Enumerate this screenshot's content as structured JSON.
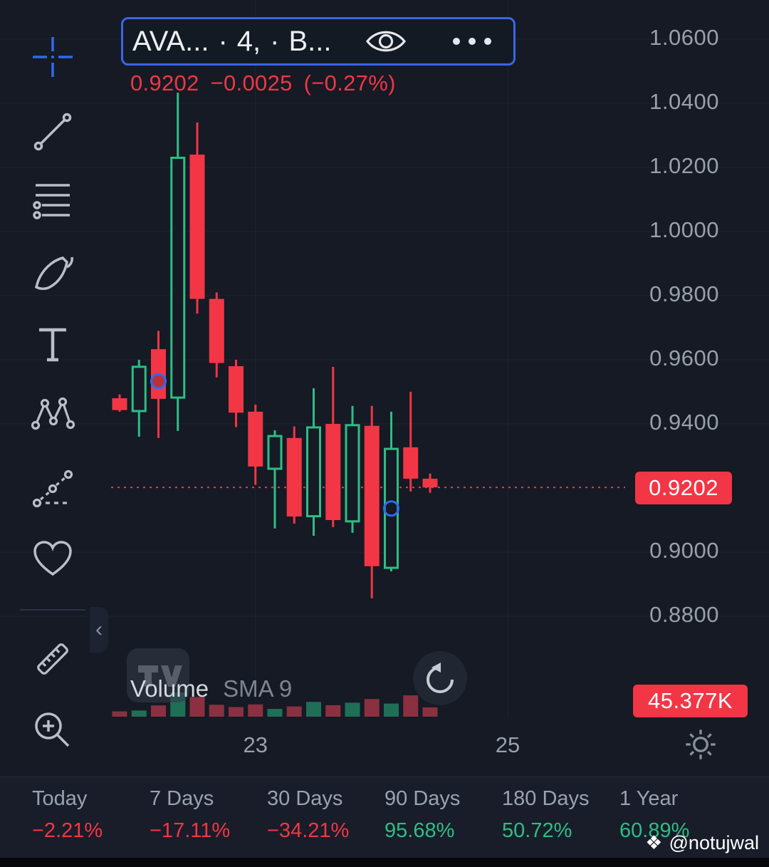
{
  "colors": {
    "bg": "#151a24",
    "panel": "#181d29",
    "up": "#2ebd85",
    "down": "#f23645",
    "volume_up": "#1f6f57",
    "volume_down": "#8a3040",
    "accent_blue": "#2f6bf0",
    "axis_text": "#9aa0ab",
    "text": "#eceff4",
    "muted": "#7e8490"
  },
  "header": {
    "symbol": "AVA...",
    "sep": "·",
    "interval": "4,",
    "exchange": "B...",
    "price": "0.9202",
    "change": "−0.0025",
    "change_pct": "(−0.27%)"
  },
  "toolbar": {
    "collapse_glyph": "‹",
    "active_tool": "crosshair",
    "tools": [
      "crosshair",
      "trend-line",
      "fib-retracement",
      "brush",
      "text",
      "xabcd-pattern",
      "forecast",
      "emoji",
      "measure",
      "zoom-in"
    ]
  },
  "legend": {
    "volume": "Volume",
    "sma": "SMA 9"
  },
  "price_axis": {
    "current_price_label": "0.9202",
    "volume_label": "45.377K"
  },
  "chart_data": {
    "type": "candlestick",
    "symbol_display": "AVA... · 4, · B...",
    "current_price": 0.9202,
    "change": -0.0025,
    "change_pct": -0.27,
    "ylim": [
      0.875,
      1.07
    ],
    "grid": true,
    "price_axis_ticks": [
      "1.0600",
      "1.0400",
      "1.0200",
      "1.0000",
      "0.9800",
      "0.9600",
      "0.9400",
      "0.9000",
      "0.8800"
    ],
    "time_ticks": [
      {
        "label": "23",
        "candle_index": 7
      },
      {
        "label": "25",
        "candle_index": 20
      }
    ],
    "indicator": "Volume SMA 9",
    "volume_unit": "K",
    "last_volume": "45.377K",
    "candles": [
      {
        "o": 0.948,
        "h": 0.9492,
        "l": 0.9438,
        "c": 0.9443,
        "v": 26
      },
      {
        "o": 0.944,
        "h": 0.96,
        "l": 0.936,
        "c": 0.9578,
        "v": 30
      },
      {
        "o": 0.9633,
        "h": 0.969,
        "l": 0.9356,
        "c": 0.9478,
        "v": 55
      },
      {
        "o": 0.9482,
        "h": 1.0433,
        "l": 0.9378,
        "c": 1.023,
        "v": 118
      },
      {
        "o": 1.024,
        "h": 1.034,
        "l": 0.9744,
        "c": 0.979,
        "v": 96
      },
      {
        "o": 0.979,
        "h": 0.981,
        "l": 0.9545,
        "c": 0.959,
        "v": 58
      },
      {
        "o": 0.958,
        "h": 0.96,
        "l": 0.939,
        "c": 0.9435,
        "v": 47
      },
      {
        "o": 0.9438,
        "h": 0.946,
        "l": 0.921,
        "c": 0.9267,
        "v": 60
      },
      {
        "o": 0.926,
        "h": 0.938,
        "l": 0.9074,
        "c": 0.9362,
        "v": 38
      },
      {
        "o": 0.9356,
        "h": 0.9392,
        "l": 0.9089,
        "c": 0.9111,
        "v": 50
      },
      {
        "o": 0.9112,
        "h": 0.9511,
        "l": 0.9051,
        "c": 0.9389,
        "v": 72
      },
      {
        "o": 0.94,
        "h": 0.9578,
        "l": 0.9078,
        "c": 0.91,
        "v": 56
      },
      {
        "o": 0.9096,
        "h": 0.9456,
        "l": 0.906,
        "c": 0.9396,
        "v": 68
      },
      {
        "o": 0.9394,
        "h": 0.9456,
        "l": 0.8856,
        "c": 0.8956,
        "v": 86
      },
      {
        "o": 0.8951,
        "h": 0.9438,
        "l": 0.894,
        "c": 0.9322,
        "v": 64
      },
      {
        "o": 0.9327,
        "h": 0.95,
        "l": 0.9189,
        "c": 0.9229,
        "v": 104
      },
      {
        "o": 0.9229,
        "h": 0.9245,
        "l": 0.9185,
        "c": 0.9202,
        "v": 45.377
      }
    ],
    "markers": [
      {
        "candle_index": 2,
        "price": 0.9533
      },
      {
        "candle_index": 14,
        "price": 0.9136
      }
    ]
  },
  "footer_stats": [
    {
      "label": "Today",
      "value": "−2.21%",
      "dir": "down"
    },
    {
      "label": "7 Days",
      "value": "−17.11%",
      "dir": "down"
    },
    {
      "label": "30 Days",
      "value": "−34.21%",
      "dir": "down"
    },
    {
      "label": "90 Days",
      "value": "95.68%",
      "dir": "up"
    },
    {
      "label": "180 Days",
      "value": "50.72%",
      "dir": "up"
    },
    {
      "label": "1 Year",
      "value": "60.89%",
      "dir": "up"
    }
  ],
  "watermark": {
    "icon": "❖",
    "text": "@notujwal"
  }
}
